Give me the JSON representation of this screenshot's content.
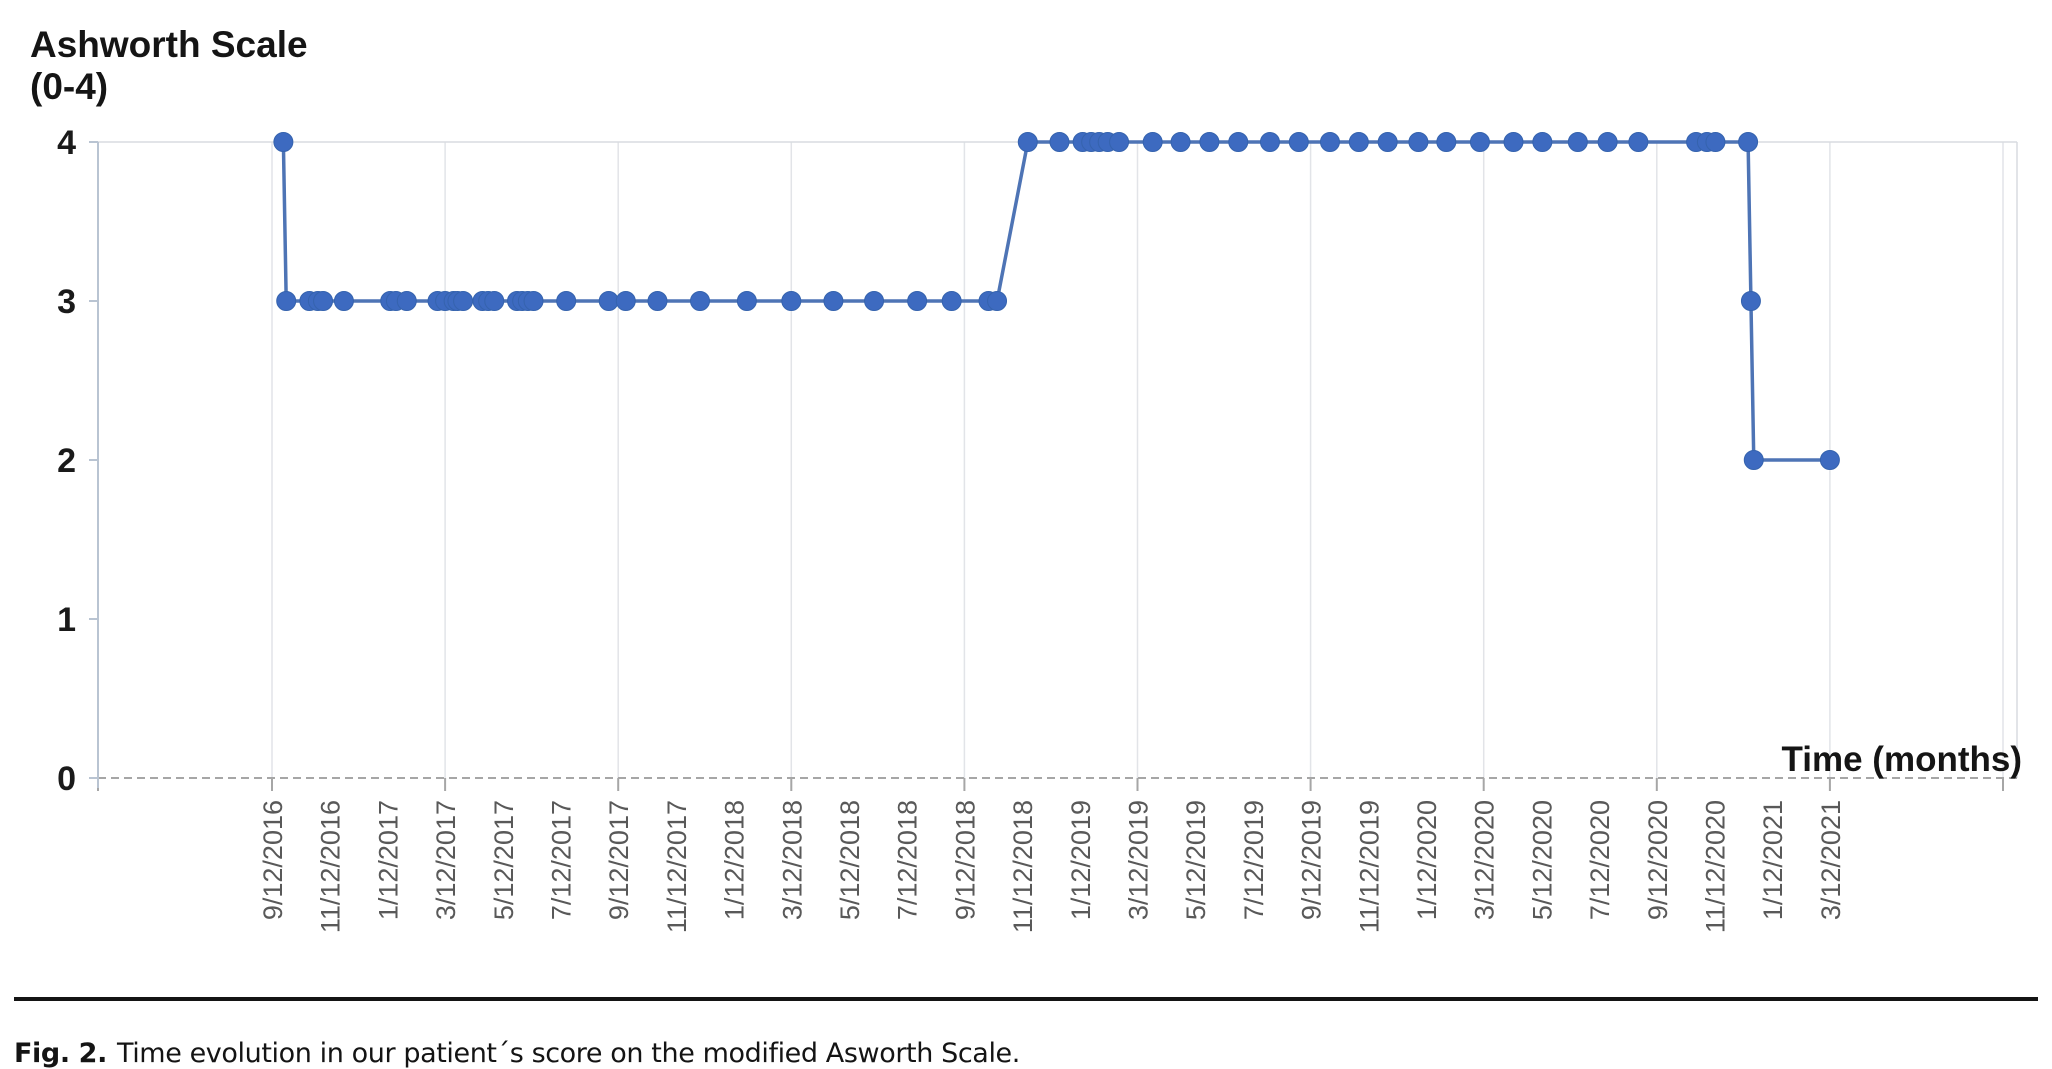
{
  "chart": {
    "ylabel_line1": "Ashworth Scale",
    "ylabel_line2": "(0-4)",
    "xlabel": "Time (months)"
  },
  "caption": {
    "label": "Fig. 2.",
    "text": "Time evolution in our patient´s score on the modified Asworth Scale."
  },
  "chart_data": {
    "type": "line",
    "title": "",
    "xlabel": "Time (months)",
    "ylabel": "Ashworth Scale (0-4)",
    "ylim": [
      0,
      4
    ],
    "y_ticks": [
      4,
      3,
      2,
      1,
      0
    ],
    "grid": "vertical-6-month",
    "legend": "none",
    "line_color": "#4e74b5",
    "marker_color": "#3d6ac0",
    "x_tick_labels": [
      "9/12/2016",
      "11/12/2016",
      "1/12/2017",
      "3/12/2017",
      "5/12/2017",
      "7/12/2017",
      "9/12/2017",
      "11/12/2017",
      "1/12/2018",
      "3/12/2018",
      "5/12/2018",
      "7/12/2018",
      "9/12/2018",
      "11/12/2018",
      "1/12/2019",
      "3/12/2019",
      "5/12/2019",
      "7/12/2019",
      "9/12/2019",
      "11/12/2019",
      "1/12/2020",
      "3/12/2020",
      "5/12/2020",
      "7/12/2020",
      "9/12/2020",
      "11/12/2020",
      "1/12/2021",
      "3/12/2021"
    ],
    "x_gridline_dates": [
      "9/12/2016",
      "3/12/2017",
      "9/12/2017",
      "3/12/2018",
      "9/12/2018",
      "3/12/2019",
      "9/12/2019",
      "3/12/2020",
      "9/12/2020",
      "3/12/2021",
      "9/12/2021"
    ],
    "series": [
      {
        "points": [
          [
            "2016-09-24",
            4
          ],
          [
            "2016-09-27",
            3
          ],
          [
            "2016-10-21",
            3
          ],
          [
            "2016-10-30",
            3
          ],
          [
            "2016-11-05",
            3
          ],
          [
            "2016-11-27",
            3
          ],
          [
            "2017-01-15",
            3
          ],
          [
            "2017-01-21",
            3
          ],
          [
            "2017-02-02",
            3
          ],
          [
            "2017-03-04",
            3
          ],
          [
            "2017-03-12",
            3
          ],
          [
            "2017-03-21",
            3
          ],
          [
            "2017-03-25",
            3
          ],
          [
            "2017-03-31",
            3
          ],
          [
            "2017-04-21",
            3
          ],
          [
            "2017-04-27",
            3
          ],
          [
            "2017-05-03",
            3
          ],
          [
            "2017-05-27",
            3
          ],
          [
            "2017-06-02",
            3
          ],
          [
            "2017-06-08",
            3
          ],
          [
            "2017-06-14",
            3
          ],
          [
            "2017-07-18",
            3
          ],
          [
            "2017-09-02",
            3
          ],
          [
            "2017-09-20",
            3
          ],
          [
            "2017-10-23",
            3
          ],
          [
            "2017-12-07",
            3
          ],
          [
            "2018-01-26",
            3
          ],
          [
            "2018-03-12",
            3
          ],
          [
            "2018-04-26",
            3
          ],
          [
            "2018-06-08",
            3
          ],
          [
            "2018-07-23",
            3
          ],
          [
            "2018-08-29",
            3
          ],
          [
            "2018-10-07",
            3
          ],
          [
            "2018-10-16",
            3
          ],
          [
            "2018-11-18",
            4
          ],
          [
            "2018-12-21",
            4
          ],
          [
            "2019-01-15",
            4
          ],
          [
            "2019-01-24",
            4
          ],
          [
            "2019-02-02",
            4
          ],
          [
            "2019-02-11",
            4
          ],
          [
            "2019-02-23",
            4
          ],
          [
            "2019-03-28",
            4
          ],
          [
            "2019-04-27",
            4
          ],
          [
            "2019-05-27",
            4
          ],
          [
            "2019-06-27",
            4
          ],
          [
            "2019-07-30",
            4
          ],
          [
            "2019-08-30",
            4
          ],
          [
            "2019-10-02",
            4
          ],
          [
            "2019-11-02",
            4
          ],
          [
            "2019-12-02",
            4
          ],
          [
            "2020-01-04",
            4
          ],
          [
            "2020-02-03",
            4
          ],
          [
            "2020-03-08",
            4
          ],
          [
            "2020-04-13",
            4
          ],
          [
            "2020-05-13",
            4
          ],
          [
            "2020-06-20",
            4
          ],
          [
            "2020-07-21",
            4
          ],
          [
            "2020-08-23",
            4
          ],
          [
            "2020-10-23",
            4
          ],
          [
            "2020-11-04",
            4
          ],
          [
            "2020-11-13",
            4
          ],
          [
            "2020-12-17",
            4
          ],
          [
            "2020-12-20",
            3
          ],
          [
            "2020-12-23",
            2
          ],
          [
            "2021-03-12",
            2
          ]
        ]
      }
    ]
  }
}
